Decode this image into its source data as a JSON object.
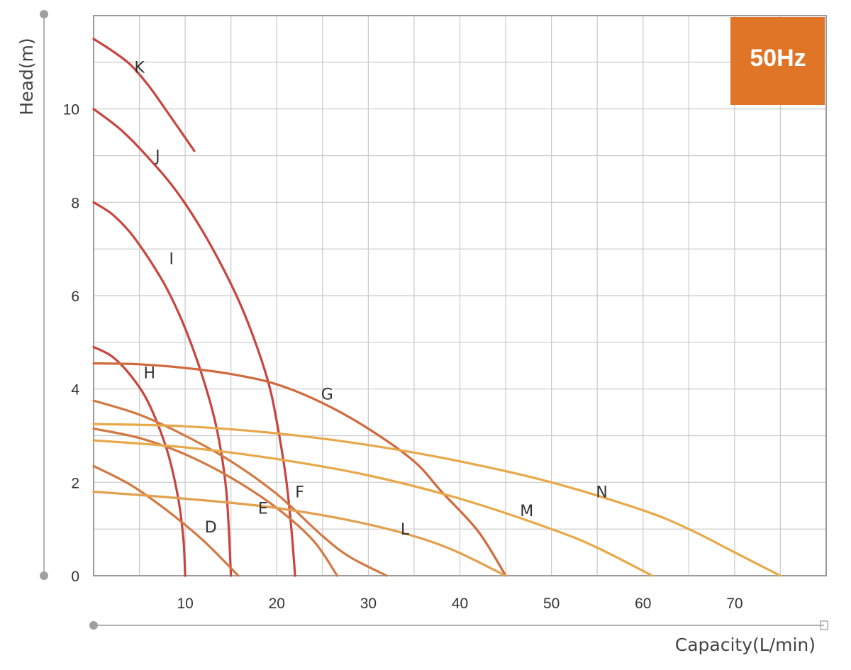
{
  "chart_data": {
    "type": "line",
    "badge": {
      "text": "50Hz",
      "color": "#E07427"
    },
    "xlabel": "Capacity(L/min)",
    "ylabel": "Head(m)",
    "xlim": [
      0,
      80
    ],
    "ylim": [
      0,
      12
    ],
    "x_ticks": [
      "10",
      "20",
      "30",
      "40",
      "50",
      "60",
      "70"
    ],
    "y_ticks": [
      "0",
      "2",
      "4",
      "6",
      "8",
      "10"
    ],
    "grid": true,
    "series": [
      {
        "name": "K",
        "color": "#C8453F",
        "label_at": [
          5.0,
          10.9
        ],
        "points": [
          [
            0,
            11.5
          ],
          [
            2,
            11.25
          ],
          [
            4,
            10.95
          ],
          [
            6,
            10.5
          ],
          [
            8,
            9.95
          ],
          [
            11,
            9.1
          ]
        ]
      },
      {
        "name": "J",
        "color": "#C8453F",
        "label_at": [
          7.0,
          9.0
        ],
        "points": [
          [
            0,
            10.0
          ],
          [
            3,
            9.55
          ],
          [
            6,
            8.95
          ],
          [
            9,
            8.25
          ],
          [
            12,
            7.35
          ],
          [
            15,
            6.25
          ],
          [
            17,
            5.35
          ],
          [
            19,
            4.2
          ],
          [
            20,
            3.3
          ],
          [
            21,
            2.1
          ],
          [
            21.6,
            1.0
          ],
          [
            22,
            0
          ]
        ]
      },
      {
        "name": "I",
        "color": "#C8453F",
        "label_at": [
          8.5,
          6.8
        ],
        "points": [
          [
            0,
            8.0
          ],
          [
            2,
            7.75
          ],
          [
            4,
            7.35
          ],
          [
            6,
            6.8
          ],
          [
            8,
            6.15
          ],
          [
            10,
            5.3
          ],
          [
            12,
            4.2
          ],
          [
            13.5,
            3.1
          ],
          [
            14.5,
            1.8
          ],
          [
            15,
            0
          ]
        ]
      },
      {
        "name": "H",
        "color": "#C8453F",
        "label_at": [
          6.1,
          4.35
        ],
        "points": [
          [
            0,
            4.9
          ],
          [
            2,
            4.7
          ],
          [
            4,
            4.3
          ],
          [
            6,
            3.7
          ],
          [
            8,
            2.7
          ],
          [
            9.2,
            1.7
          ],
          [
            9.8,
            0.8
          ],
          [
            10,
            0
          ]
        ]
      },
      {
        "name": "G",
        "color": "#D0693C",
        "label_at": [
          25.5,
          3.9
        ],
        "points": [
          [
            0,
            4.55
          ],
          [
            5,
            4.53
          ],
          [
            10,
            4.45
          ],
          [
            15,
            4.32
          ],
          [
            20,
            4.1
          ],
          [
            25,
            3.7
          ],
          [
            30,
            3.15
          ],
          [
            35,
            2.45
          ],
          [
            38,
            1.8
          ],
          [
            42,
            0.95
          ],
          [
            45,
            0
          ]
        ]
      },
      {
        "name": "F",
        "color": "#D27843",
        "label_at": [
          22.5,
          1.8
        ],
        "points": [
          [
            0,
            3.75
          ],
          [
            5,
            3.45
          ],
          [
            10,
            3.0
          ],
          [
            15,
            2.45
          ],
          [
            20,
            1.75
          ],
          [
            25,
            0.85
          ],
          [
            28,
            0.4
          ],
          [
            32,
            0
          ]
        ]
      },
      {
        "name": "E",
        "color": "#D27843",
        "label_at": [
          18.5,
          1.45
        ],
        "points": [
          [
            0,
            3.15
          ],
          [
            5,
            2.95
          ],
          [
            10,
            2.6
          ],
          [
            15,
            2.1
          ],
          [
            20,
            1.45
          ],
          [
            24,
            0.75
          ],
          [
            26.6,
            0
          ]
        ]
      },
      {
        "name": "D",
        "color": "#D27843",
        "label_at": [
          12.8,
          1.05
        ],
        "points": [
          [
            0,
            2.35
          ],
          [
            4,
            1.95
          ],
          [
            8,
            1.4
          ],
          [
            12,
            0.75
          ],
          [
            15.8,
            0
          ]
        ]
      },
      {
        "name": "N",
        "color": "#E8A84A",
        "label_at": [
          55.5,
          1.8
        ],
        "points": [
          [
            0,
            3.25
          ],
          [
            10,
            3.2
          ],
          [
            20,
            3.05
          ],
          [
            30,
            2.8
          ],
          [
            40,
            2.45
          ],
          [
            50,
            2.0
          ],
          [
            60,
            1.4
          ],
          [
            65,
            1.0
          ],
          [
            70,
            0.5
          ],
          [
            75,
            0
          ]
        ]
      },
      {
        "name": "M",
        "color": "#E8A84A",
        "label_at": [
          47.3,
          1.4
        ],
        "points": [
          [
            0,
            2.9
          ],
          [
            10,
            2.75
          ],
          [
            20,
            2.5
          ],
          [
            30,
            2.15
          ],
          [
            40,
            1.65
          ],
          [
            50,
            1.0
          ],
          [
            55,
            0.6
          ],
          [
            61,
            0
          ]
        ]
      },
      {
        "name": "L",
        "color": "#E2A04E",
        "label_at": [
          34.0,
          1.0
        ],
        "points": [
          [
            0,
            1.8
          ],
          [
            10,
            1.65
          ],
          [
            20,
            1.45
          ],
          [
            30,
            1.1
          ],
          [
            38,
            0.65
          ],
          [
            45,
            0
          ]
        ]
      }
    ]
  }
}
